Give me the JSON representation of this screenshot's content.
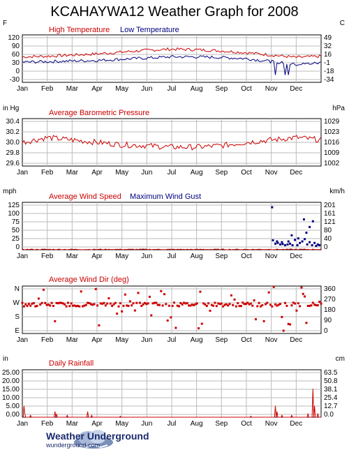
{
  "page": {
    "title": "KCAHAYWA12 Weather Graph for 2008"
  },
  "branding": {
    "name": "Weather Underground",
    "url": "wunderground.com",
    "logo_icon": "cloud-logo-icon"
  },
  "colors": {
    "red": "#cc0000",
    "blue": "#000080",
    "grid": "#bbbbbb"
  },
  "months": [
    "Jan",
    "Feb",
    "Mar",
    "Apr",
    "May",
    "Jun",
    "Jul",
    "Aug",
    "Sep",
    "Oct",
    "Nov",
    "Dec"
  ],
  "chart_data": [
    {
      "id": "temperature",
      "type": "line",
      "left_unit": "F",
      "right_unit": "C",
      "legend": [
        "High Temperature",
        "Low Temperature"
      ],
      "yticks_left": [
        "120",
        "90",
        "60",
        "30",
        "0",
        "-30"
      ],
      "yticks_right": [
        "49",
        "32",
        "16",
        "-1",
        "-18",
        "-34"
      ],
      "ylim": [
        -30,
        130
      ],
      "series": [
        {
          "name": "High Temperature",
          "color": "#cc0000",
          "monthly_anchor": [
            56,
            58,
            62,
            66,
            72,
            78,
            82,
            80,
            76,
            70,
            62,
            54,
            58
          ]
        },
        {
          "name": "Low Temperature",
          "color": "#000080",
          "monthly_anchor": [
            38,
            40,
            42,
            44,
            48,
            52,
            56,
            56,
            54,
            50,
            40,
            30,
            36
          ]
        }
      ]
    },
    {
      "id": "pressure",
      "type": "line",
      "left_unit": "in Hg",
      "right_unit": "hPa",
      "legend": [
        "Average Barometric Pressure"
      ],
      "yticks_left": [
        "30.4",
        "30.2",
        "30.0",
        "29.8",
        "29.6"
      ],
      "yticks_right": [
        "1029",
        "1023",
        "1016",
        "1009",
        "1002"
      ],
      "ylim": [
        29.55,
        30.55
      ],
      "series": [
        {
          "name": "Average Barometric Pressure",
          "color": "#cc0000",
          "monthly_anchor": [
            30.05,
            30.15,
            30.1,
            30.05,
            30.0,
            29.98,
            29.95,
            29.95,
            29.98,
            30.05,
            30.1,
            30.15,
            30.1
          ]
        }
      ]
    },
    {
      "id": "wind",
      "type": "line",
      "left_unit": "mph",
      "right_unit": "km/h",
      "legend": [
        "Average Wind Speed",
        "Maximum Wind Gust"
      ],
      "yticks_left": [
        "125",
        "100",
        "75",
        "50",
        "25",
        "0"
      ],
      "yticks_right": [
        "201",
        "161",
        "121",
        "80",
        "40",
        "0"
      ],
      "ylim": [
        0,
        125
      ],
      "series": [
        {
          "name": "Average Wind Speed",
          "color": "#cc0000",
          "note": "near zero all year"
        },
        {
          "name": "Maximum Wind Gust",
          "color": "#000080",
          "points": [
            [
              306,
              112
            ],
            [
              307,
              25
            ],
            [
              310,
              16
            ],
            [
              313,
              18
            ],
            [
              316,
              14
            ],
            [
              319,
              15
            ],
            [
              322,
              12
            ],
            [
              325,
              14
            ],
            [
              328,
              16
            ],
            [
              331,
              12
            ],
            [
              334,
              26
            ],
            [
              337,
              12
            ],
            [
              340,
              18
            ],
            [
              343,
              22
            ],
            [
              346,
              28
            ],
            [
              349,
              14
            ],
            [
              352,
              20
            ],
            [
              355,
              12
            ],
            [
              358,
              18
            ],
            [
              360,
              10
            ],
            [
              362,
              14
            ],
            [
              364,
              12
            ],
            [
              330,
              38
            ],
            [
              345,
              80
            ],
            [
              352,
              60
            ],
            [
              356,
              75
            ],
            [
              348,
              45
            ],
            [
              338,
              30
            ],
            [
              326,
              22
            ],
            [
              318,
              20
            ],
            [
              312,
              22
            ]
          ]
        }
      ]
    },
    {
      "id": "winddir",
      "type": "scatter",
      "left_unit": "",
      "right_unit": "",
      "legend": [
        "Average Wind Dir (deg)"
      ],
      "yticks_left": [
        "N",
        "W",
        "S",
        "E"
      ],
      "yticks_right": [
        "360",
        "270",
        "180",
        "90",
        "0"
      ],
      "ylim": [
        0,
        360
      ],
      "series": [
        {
          "name": "Average Wind Dir (deg)",
          "color": "#cc0000",
          "typical": 220
        }
      ]
    },
    {
      "id": "rain",
      "type": "line",
      "left_unit": "in",
      "right_unit": "cm",
      "legend": [
        "Daily Rainfall"
      ],
      "yticks_left": [
        "25.00",
        "20.00",
        "15.00",
        "10.00",
        "5.00",
        "0.00"
      ],
      "yticks_right": [
        "63.5",
        "50.8",
        "38.1",
        "25.4",
        "12.7",
        "0.0"
      ],
      "ylim": [
        0,
        25
      ],
      "series": [
        {
          "name": "Daily Rainfall",
          "color": "#cc0000",
          "points": [
            [
              2,
              6
            ],
            [
              3,
              2
            ],
            [
              10,
              1
            ],
            [
              40,
              3
            ],
            [
              42,
              1.5
            ],
            [
              55,
              1
            ],
            [
              80,
              3
            ],
            [
              85,
              1
            ],
            [
              120,
              0.5
            ],
            [
              280,
              0.5
            ],
            [
              310,
              6
            ],
            [
              312,
              3
            ],
            [
              318,
              1
            ],
            [
              330,
              1
            ],
            [
              350,
              2
            ],
            [
              356,
              15
            ],
            [
              358,
              6
            ],
            [
              362,
              2
            ]
          ]
        }
      ]
    }
  ]
}
